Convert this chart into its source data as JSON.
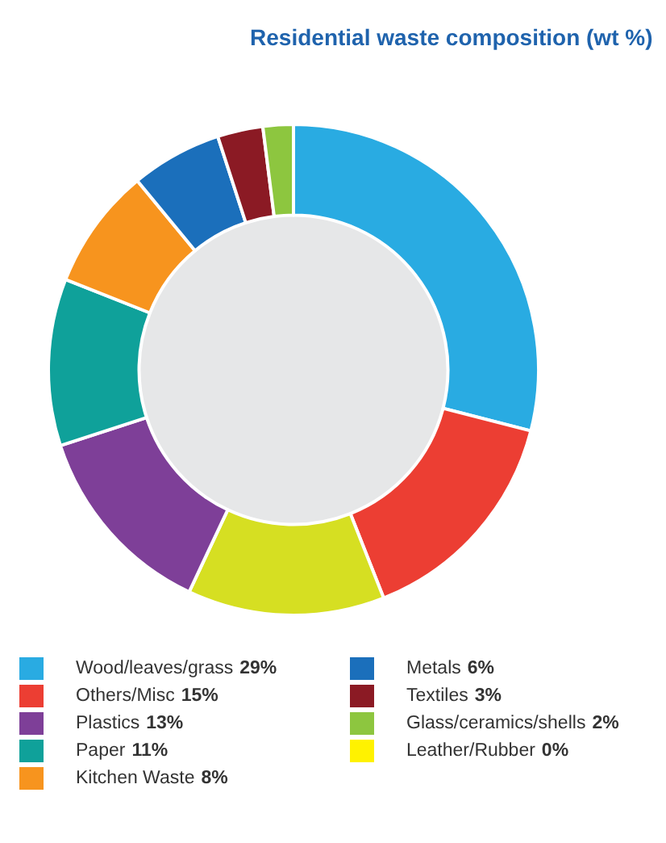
{
  "chart_data": {
    "type": "donut",
    "title": "Residential waste composition (wt %)",
    "categories": [
      "Wood/leaves/grass",
      "Others/Misc",
      null,
      "Plastics",
      "Paper",
      "Kitchen Waste",
      "Metals",
      "Textiles",
      "Glass/ceramics/shells",
      "Leather/Rubber"
    ],
    "values": [
      29,
      15,
      13,
      13,
      11,
      8,
      6,
      3,
      2,
      0
    ],
    "value_labels": [
      "29%",
      "15%",
      null,
      "13%",
      "11%",
      "8%",
      "6%",
      "3%",
      "2%",
      "0%"
    ],
    "colors": [
      "#29abe2",
      "#ec3e33",
      "#d6df22",
      "#7e3f98",
      "#0fa19a",
      "#f7941e",
      "#1b6fbb",
      "#8b1a24",
      "#8dc63f",
      "#fff200"
    ],
    "legend": "bottom"
  }
}
